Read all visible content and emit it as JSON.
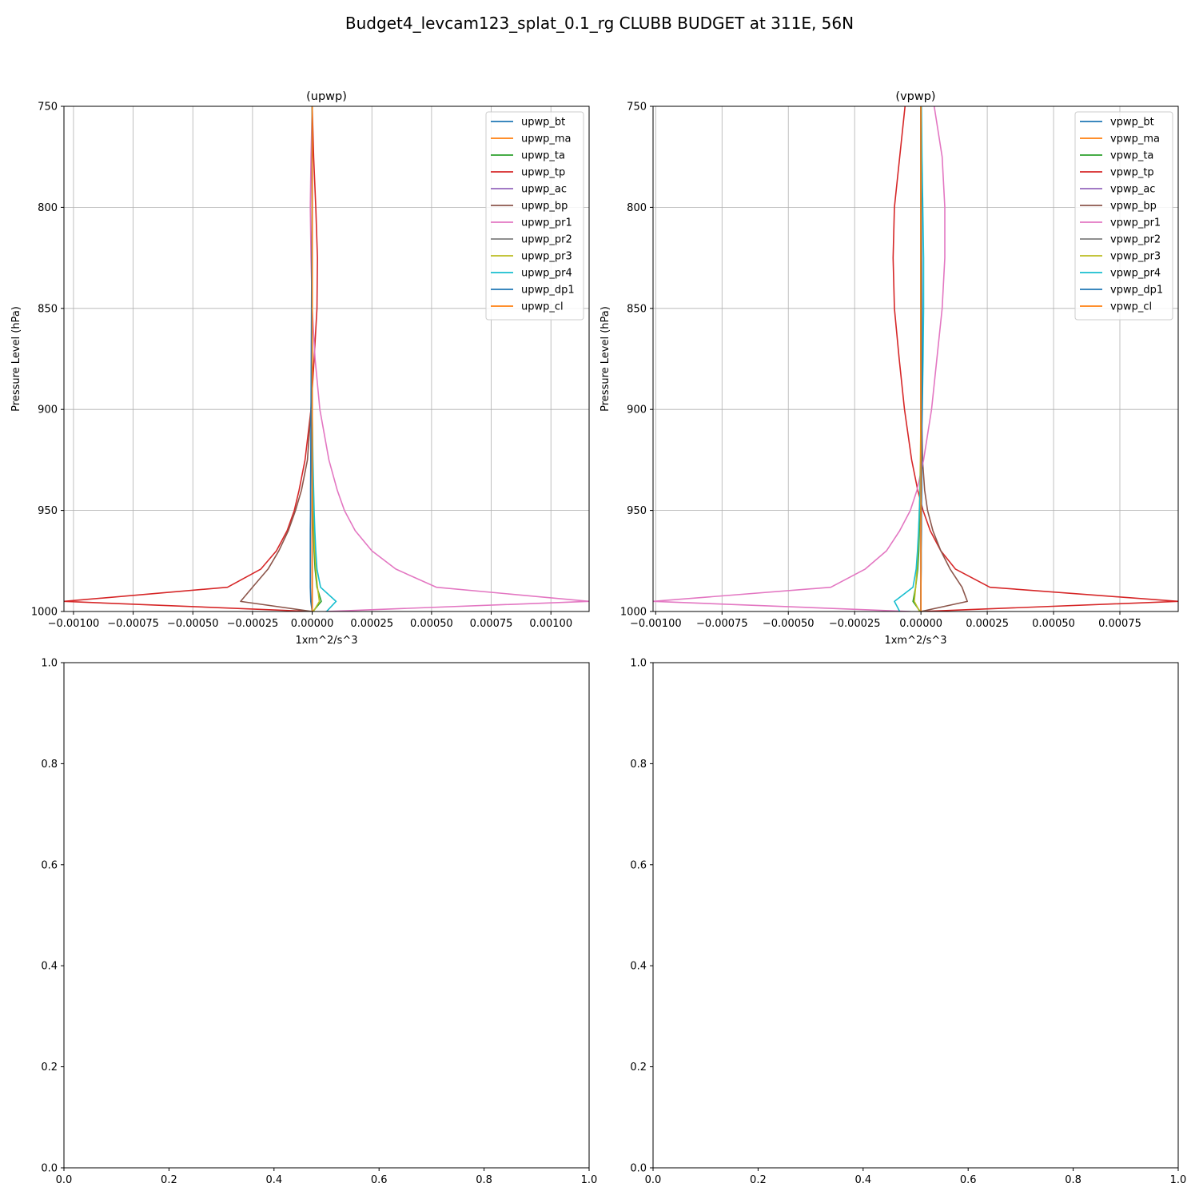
{
  "figure": {
    "title": "Budget4_levcam123_splat_0.1_rg CLUBB BUDGET at 311E, 56N"
  },
  "colors": {
    "c0": "#1f77b4",
    "c1": "#ff7f0e",
    "c2": "#2ca02c",
    "c3": "#d62728",
    "c4": "#9467bd",
    "c5": "#8c564b",
    "c6": "#e377c2",
    "c7": "#7f7f7f",
    "c8": "#bcbd22",
    "c9": "#17becf",
    "grid": "#b0b0b0"
  },
  "chart_data": [
    {
      "type": "line",
      "title": "(upwp)",
      "xlabel": "1xm^2/s^3",
      "ylabel": "Pressure Level (hPa)",
      "xlim": [
        -0.00104,
        0.00116
      ],
      "ylim": [
        1000,
        750
      ],
      "grid": true,
      "legend_position": "top-right",
      "x_ticks": [
        -0.001,
        -0.00075,
        -0.0005,
        -0.00025,
        0,
        0.00025,
        0.0005,
        0.00075,
        0.001
      ],
      "x_tick_labels": [
        "−0.00100",
        "−0.00075",
        "−0.00050",
        "−0.00025",
        "0.00000",
        "0.00025",
        "0.00050",
        "0.00075",
        "0.00100"
      ],
      "y_ticks": [
        750,
        800,
        850,
        900,
        950,
        1000
      ],
      "y_tick_labels": [
        "750",
        "800",
        "850",
        "900",
        "950",
        "1000"
      ],
      "levels": [
        750,
        775,
        800,
        825,
        850,
        875,
        900,
        925,
        940,
        950,
        960,
        970,
        979,
        988,
        995,
        1000
      ],
      "series": [
        {
          "name": "upwp_bt",
          "color": "c0",
          "values": [
            0,
            0,
            0,
            0,
            0,
            0,
            0,
            0,
            0,
            0,
            0,
            0,
            0,
            0,
            0,
            0
          ]
        },
        {
          "name": "upwp_ma",
          "color": "c1",
          "values": [
            0,
            0,
            0,
            0,
            0,
            0,
            0,
            0,
            0,
            0,
            0,
            0,
            0,
            0,
            0,
            0
          ]
        },
        {
          "name": "upwp_ta",
          "color": "c2",
          "values": [
            0,
            0,
            0,
            0,
            0,
            0,
            0,
            0,
            2e-06,
            4e-06,
            6e-06,
            8e-06,
            1.2e-05,
            2e-05,
            3.8e-05,
            3e-06
          ]
        },
        {
          "name": "upwp_tp",
          "color": "c3",
          "values": [
            0,
            6e-06,
            1.5e-05,
            2.2e-05,
            2e-05,
            8e-06,
            -5e-06,
            -3e-05,
            -5.5e-05,
            -7.5e-05,
            -0.000105,
            -0.00015,
            -0.000215,
            -0.000355,
            -0.00104,
            1e-06
          ]
        },
        {
          "name": "upwp_ac",
          "color": "c4",
          "values": [
            0,
            0,
            0,
            0,
            0,
            0,
            0,
            0,
            0,
            0,
            0,
            0,
            0,
            0,
            0,
            0
          ]
        },
        {
          "name": "upwp_bp",
          "color": "c5",
          "values": [
            0,
            0,
            0,
            0,
            0,
            0,
            -5e-06,
            -2e-05,
            -4.5e-05,
            -7e-05,
            -0.0001,
            -0.00014,
            -0.000185,
            -0.00025,
            -0.0003,
            0
          ]
        },
        {
          "name": "upwp_pr1",
          "color": "c6",
          "values": [
            0,
            -5e-06,
            -8e-06,
            -5e-06,
            0,
            1.2e-05,
            3.2e-05,
            7e-05,
            0.000105,
            0.000135,
            0.00018,
            0.00025,
            0.00035,
            0.00052,
            0.00116,
            5.5e-05
          ]
        },
        {
          "name": "upwp_pr2",
          "color": "c7",
          "values": [
            0,
            0,
            0,
            0,
            0,
            0,
            0,
            0,
            0,
            0,
            0,
            0,
            0,
            0,
            0,
            0
          ]
        },
        {
          "name": "upwp_pr3",
          "color": "c8",
          "values": [
            0,
            0,
            0,
            0,
            0,
            0,
            0,
            2e-06,
            4e-06,
            6e-06,
            8e-06,
            1.1e-05,
            1.5e-05,
            2.2e-05,
            3e-05,
            5e-06
          ]
        },
        {
          "name": "upwp_pr4",
          "color": "c9",
          "values": [
            0,
            0,
            0,
            0,
            0,
            0,
            0,
            3e-06,
            6e-06,
            8e-06,
            1.1e-05,
            1.5e-05,
            2e-05,
            3.5e-05,
            0.0001,
            6e-05
          ]
        },
        {
          "name": "upwp_dp1",
          "color": "c0",
          "values": [
            0,
            0,
            0,
            -2e-06,
            -3e-06,
            -4e-06,
            -5e-06,
            -6e-06,
            -7e-06,
            -7e-06,
            -8e-06,
            -8e-06,
            -8e-06,
            -8e-06,
            -6e-06,
            0
          ]
        },
        {
          "name": "upwp_cl",
          "color": "c1",
          "values": [
            0,
            0,
            0,
            0,
            0,
            0,
            0,
            0,
            0,
            0,
            0,
            0,
            0,
            0,
            0,
            0
          ]
        }
      ]
    },
    {
      "type": "line",
      "title": "(vpwp)",
      "xlabel": "1xm^2/s^3",
      "ylabel": "Pressure Level (hPa)",
      "xlim": [
        -0.00101,
        0.00097
      ],
      "ylim": [
        1000,
        750
      ],
      "grid": true,
      "legend_position": "top-right",
      "x_ticks": [
        -0.001,
        -0.00075,
        -0.0005,
        -0.00025,
        0,
        0.00025,
        0.0005,
        0.00075
      ],
      "x_tick_labels": [
        "−0.00100",
        "−0.00075",
        "−0.00050",
        "−0.00025",
        "0.00000",
        "0.00025",
        "0.00050",
        "0.00075"
      ],
      "y_ticks": [
        750,
        800,
        850,
        900,
        950,
        1000
      ],
      "y_tick_labels": [
        "750",
        "800",
        "850",
        "900",
        "950",
        "1000"
      ],
      "levels": [
        750,
        775,
        800,
        825,
        850,
        875,
        900,
        925,
        940,
        950,
        960,
        970,
        979,
        988,
        995,
        1000
      ],
      "series": [
        {
          "name": "vpwp_bt",
          "color": "c0",
          "values": [
            0,
            0,
            0,
            0,
            0,
            0,
            0,
            0,
            0,
            0,
            0,
            0,
            0,
            0,
            0,
            0
          ]
        },
        {
          "name": "vpwp_ma",
          "color": "c1",
          "values": [
            0,
            0,
            0,
            0,
            0,
            0,
            0,
            0,
            0,
            0,
            0,
            0,
            0,
            0,
            0,
            0
          ]
        },
        {
          "name": "vpwp_ta",
          "color": "c2",
          "values": [
            0,
            0,
            0,
            0,
            0,
            0,
            0,
            0,
            -2e-06,
            -4e-06,
            -6e-06,
            -8e-06,
            -1.2e-05,
            -2e-05,
            -3e-05,
            -3e-06
          ]
        },
        {
          "name": "vpwp_tp",
          "color": "c3",
          "values": [
            -6e-05,
            -8e-05,
            -0.0001,
            -0.000105,
            -0.0001,
            -8.2e-05,
            -6.2e-05,
            -3.5e-05,
            -1.2e-05,
            8e-06,
            3.5e-05,
            7.5e-05,
            0.00013,
            0.00026,
            0.00097,
            1e-06
          ]
        },
        {
          "name": "vpwp_ac",
          "color": "c4",
          "values": [
            0,
            0,
            0,
            0,
            0,
            0,
            0,
            0,
            0,
            0,
            0,
            0,
            0,
            0,
            0,
            0
          ]
        },
        {
          "name": "vpwp_bp",
          "color": "c5",
          "values": [
            0,
            0,
            0,
            0,
            0,
            0,
            2e-06,
            6e-06,
            1.4e-05,
            2.5e-05,
            4.5e-05,
            7.5e-05,
            0.00011,
            0.000155,
            0.000175,
            0
          ]
        },
        {
          "name": "vpwp_pr1",
          "color": "c6",
          "values": [
            5e-05,
            8e-05,
            9e-05,
            9e-05,
            8e-05,
            6e-05,
            4e-05,
            1e-05,
            -1.5e-05,
            -4e-05,
            -8e-05,
            -0.00013,
            -0.00021,
            -0.00034,
            -0.00101,
            -4e-05
          ]
        },
        {
          "name": "vpwp_pr2",
          "color": "c7",
          "values": [
            0,
            0,
            0,
            0,
            0,
            0,
            0,
            0,
            0,
            0,
            0,
            0,
            0,
            0,
            0,
            0
          ]
        },
        {
          "name": "vpwp_pr3",
          "color": "c8",
          "values": [
            0,
            0,
            0,
            0,
            0,
            0,
            0,
            -2e-06,
            -4e-06,
            -6e-06,
            -8e-06,
            -1.1e-05,
            -1.5e-05,
            -2e-05,
            -2.5e-05,
            -5e-06
          ]
        },
        {
          "name": "vpwp_pr4",
          "color": "c9",
          "values": [
            2e-06,
            4e-06,
            7e-06,
            1e-05,
            1e-05,
            8e-06,
            5e-06,
            0,
            -3e-06,
            -6e-06,
            -9e-06,
            -1.3e-05,
            -1.8e-05,
            -3e-05,
            -0.0001,
            -8e-05
          ]
        },
        {
          "name": "vpwp_dp1",
          "color": "c0",
          "values": [
            0,
            0,
            2e-06,
            3e-06,
            4e-06,
            4e-06,
            4e-06,
            3e-06,
            3e-06,
            2e-06,
            2e-06,
            1e-06,
            1e-06,
            0,
            0,
            0
          ]
        },
        {
          "name": "vpwp_cl",
          "color": "c1",
          "values": [
            0,
            0,
            0,
            0,
            0,
            0,
            0,
            0,
            0,
            0,
            0,
            0,
            0,
            0,
            0,
            0
          ]
        }
      ]
    },
    {
      "type": "line",
      "title": "",
      "xlim": [
        0,
        1
      ],
      "ylim": [
        0,
        1
      ],
      "grid": false,
      "x_ticks": [
        0,
        0.2,
        0.4,
        0.6,
        0.8,
        1.0
      ],
      "x_tick_labels": [
        "0.0",
        "0.2",
        "0.4",
        "0.6",
        "0.8",
        "1.0"
      ],
      "y_ticks": [
        0,
        0.2,
        0.4,
        0.6,
        0.8,
        1.0
      ],
      "y_tick_labels": [
        "0.0",
        "0.2",
        "0.4",
        "0.6",
        "0.8",
        "1.0"
      ],
      "series": []
    },
    {
      "type": "line",
      "title": "",
      "xlim": [
        0,
        1
      ],
      "ylim": [
        0,
        1
      ],
      "grid": false,
      "x_ticks": [
        0,
        0.2,
        0.4,
        0.6,
        0.8,
        1.0
      ],
      "x_tick_labels": [
        "0.0",
        "0.2",
        "0.4",
        "0.6",
        "0.8",
        "1.0"
      ],
      "y_ticks": [
        0,
        0.2,
        0.4,
        0.6,
        0.8,
        1.0
      ],
      "y_tick_labels": [
        "0.0",
        "0.2",
        "0.4",
        "0.6",
        "0.8",
        "1.0"
      ],
      "series": []
    }
  ]
}
